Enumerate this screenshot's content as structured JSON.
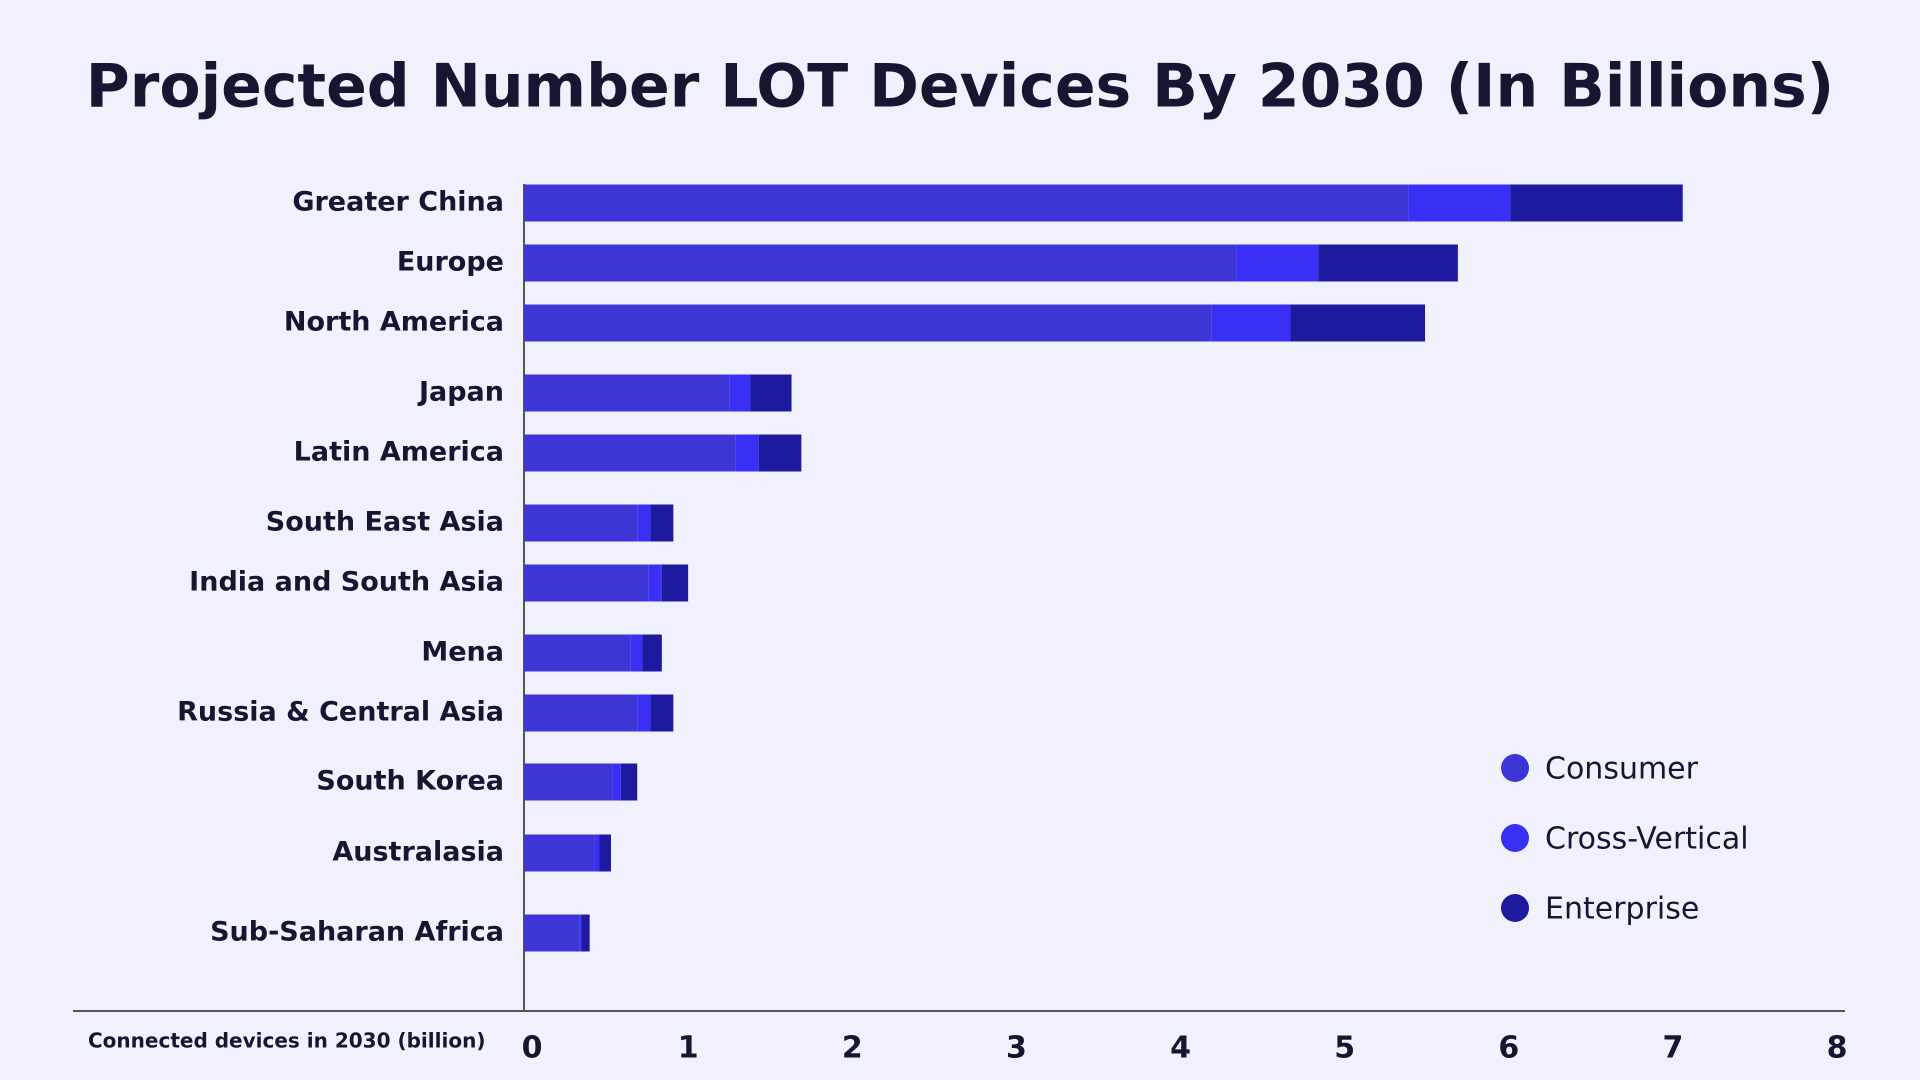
{
  "chart_data": {
    "type": "stacked-bar-horizontal",
    "title": "Projected Number LOT Devices By 2030 (In Billions)",
    "x_label": "Connected devices in 2030 (billion)",
    "categories": [
      "Greater China",
      "Europe",
      "North America",
      "Japan",
      "Latin America",
      "South East Asia",
      "India and South Asia",
      "Mena",
      "Russia & Central Asia",
      "South Korea",
      "Australasia",
      "Sub-Saharan Africa"
    ],
    "series": [
      {
        "name": "Consumer",
        "color": "#3d35d6",
        "values": [
          5.39,
          4.34,
          4.19,
          1.25,
          1.29,
          0.69,
          0.76,
          0.65,
          0.69,
          0.54,
          0.43,
          0.34
        ]
      },
      {
        "name": "Cross-Vertical",
        "color": "#3a2ff5",
        "values": [
          0.62,
          0.5,
          0.48,
          0.13,
          0.14,
          0.08,
          0.08,
          0.07,
          0.08,
          0.05,
          0.03,
          0.01
        ]
      },
      {
        "name": "Enterprise",
        "color": "#1e1aa0",
        "values": [
          1.05,
          0.85,
          0.82,
          0.25,
          0.26,
          0.14,
          0.16,
          0.12,
          0.14,
          0.1,
          0.07,
          0.05
        ]
      }
    ],
    "xlim": [
      0,
      8
    ],
    "xticks": [
      0,
      1,
      2,
      3,
      4,
      5,
      6,
      7,
      8
    ],
    "grid": false,
    "legend": "lower right"
  }
}
